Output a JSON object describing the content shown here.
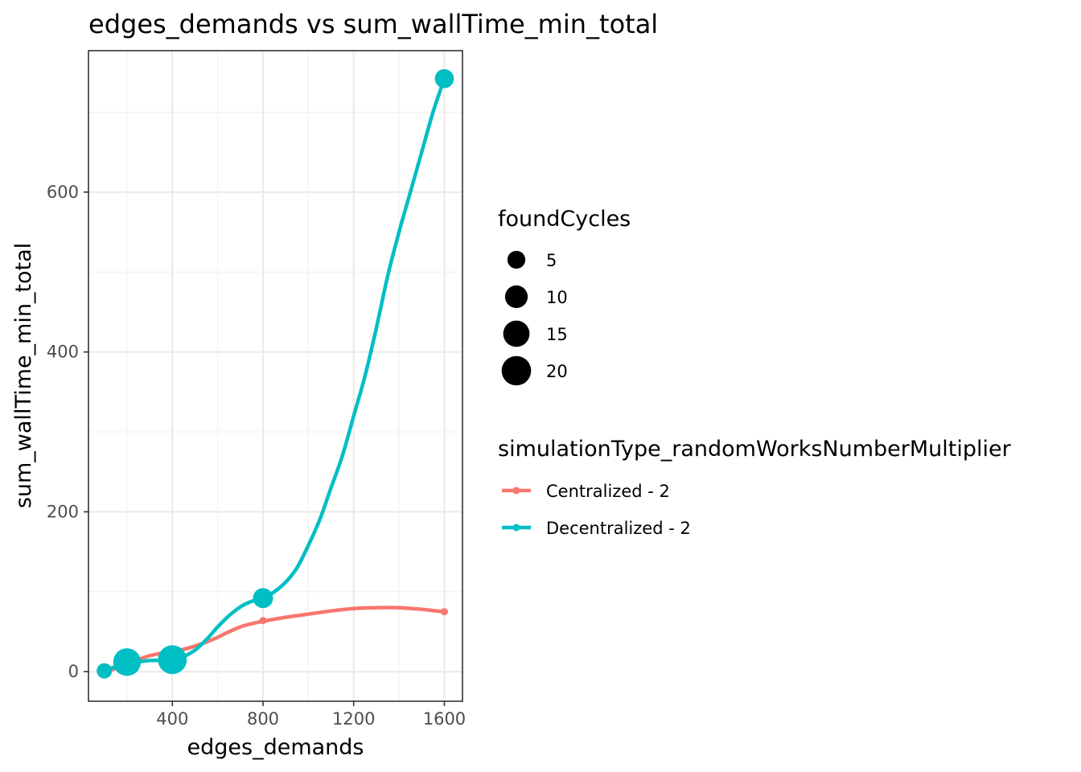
{
  "chart_data": {
    "type": "line",
    "title": "edges_demands  vs  sum_wallTime_min_total",
    "xlabel": "edges_demands",
    "ylabel": "sum_wallTime_min_total",
    "xlim": [
      30,
      1680
    ],
    "ylim": [
      -37,
      777
    ],
    "x_ticks": [
      400,
      800,
      1200,
      1600
    ],
    "x_tick_labels": [
      "400",
      "800",
      "1200",
      "1600"
    ],
    "y_ticks": [
      0,
      200,
      400,
      600
    ],
    "y_tick_labels": [
      "0",
      "200",
      "400",
      "600"
    ],
    "grid": true,
    "legend_position": "right",
    "size_legend": {
      "title": "foundCycles",
      "items": [
        {
          "label": "5",
          "value": 5
        },
        {
          "label": "10",
          "value": 10
        },
        {
          "label": "15",
          "value": 15
        },
        {
          "label": "20",
          "value": 20
        }
      ]
    },
    "color_legend": {
      "title": "simulationType_randomWorksNumberMultiplier",
      "items": [
        {
          "label": "Centralized - 2",
          "color": "#F8766D"
        },
        {
          "label": "Decentralized - 2",
          "color": "#00BFC4"
        }
      ]
    },
    "series": [
      {
        "name": "Centralized - 2",
        "color": "#F8766D",
        "x": [
          100,
          200,
          400,
          800,
          1600
        ],
        "y": [
          1,
          8,
          24,
          64,
          75
        ],
        "foundCycles": [
          0,
          0,
          0,
          0,
          0
        ],
        "smooth_x": [
          100,
          150,
          200,
          250,
          300,
          350,
          400,
          450,
          500,
          550,
          600,
          650,
          700,
          750,
          800,
          900,
          1000,
          1100,
          1200,
          1300,
          1400,
          1500,
          1600
        ],
        "smooth_y": [
          0,
          4,
          9,
          15,
          20,
          23,
          26,
          28,
          32,
          37,
          43,
          50,
          56,
          60,
          63,
          68,
          72,
          76,
          79,
          80,
          80,
          78,
          75
        ]
      },
      {
        "name": "Decentralized - 2",
        "color": "#00BFC4",
        "x": [
          100,
          200,
          400,
          800,
          1600
        ],
        "y": [
          1,
          12,
          15,
          92,
          742
        ],
        "foundCycles": [
          3,
          17,
          19,
          7,
          6
        ],
        "smooth_x": [
          100,
          150,
          200,
          250,
          300,
          350,
          400,
          450,
          500,
          550,
          600,
          650,
          700,
          750,
          800,
          850,
          900,
          950,
          1000,
          1050,
          1100,
          1150,
          1200,
          1250,
          1300,
          1350,
          1400,
          1450,
          1500,
          1550,
          1600
        ],
        "smooth_y": [
          2,
          6,
          9,
          12,
          14,
          14,
          15,
          19,
          27,
          40,
          56,
          70,
          81,
          88,
          92,
          100,
          112,
          130,
          158,
          190,
          230,
          270,
          320,
          370,
          430,
          495,
          550,
          600,
          650,
          700,
          742
        ]
      }
    ]
  }
}
